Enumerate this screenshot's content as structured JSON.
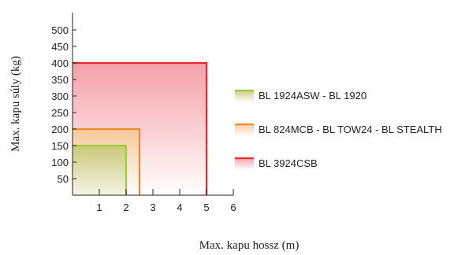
{
  "chart_data": {
    "type": "area",
    "title": "",
    "xlabel": "Max. kapu hossz (m)",
    "ylabel": "Max. kapu súly (kg)",
    "xlim": [
      0,
      6
    ],
    "ylim": [
      0,
      500
    ],
    "x_ticks": [
      1,
      2,
      3,
      4,
      5,
      6
    ],
    "y_ticks": [
      50,
      100,
      150,
      200,
      250,
      300,
      350,
      400,
      450,
      500
    ],
    "grid": false,
    "legend_placement": "right",
    "series": [
      {
        "name": "BL 3924CSB",
        "max_length": 5,
        "max_weight": 400,
        "color": "#e8272f",
        "fill_top": "#f4a0a8",
        "fill_bottom": "#ffffff"
      },
      {
        "name": "BL 824MCB - BL TOW24 - BL STEALTH",
        "max_length": 2.5,
        "max_weight": 200,
        "color": "#ee8a2a",
        "fill_top": "#f7c99c",
        "fill_bottom": "#ffffff"
      },
      {
        "name": "BL 1924ASW - BL 1920",
        "max_length": 2,
        "max_weight": 150,
        "color": "#9acc3c",
        "fill_top": "#c9c97a",
        "fill_bottom": "#f4f4e6"
      }
    ],
    "legend_order": [
      "BL 1924ASW - BL 1920",
      "BL 824MCB - BL TOW24 - BL STEALTH",
      "BL 3924CSB"
    ]
  }
}
